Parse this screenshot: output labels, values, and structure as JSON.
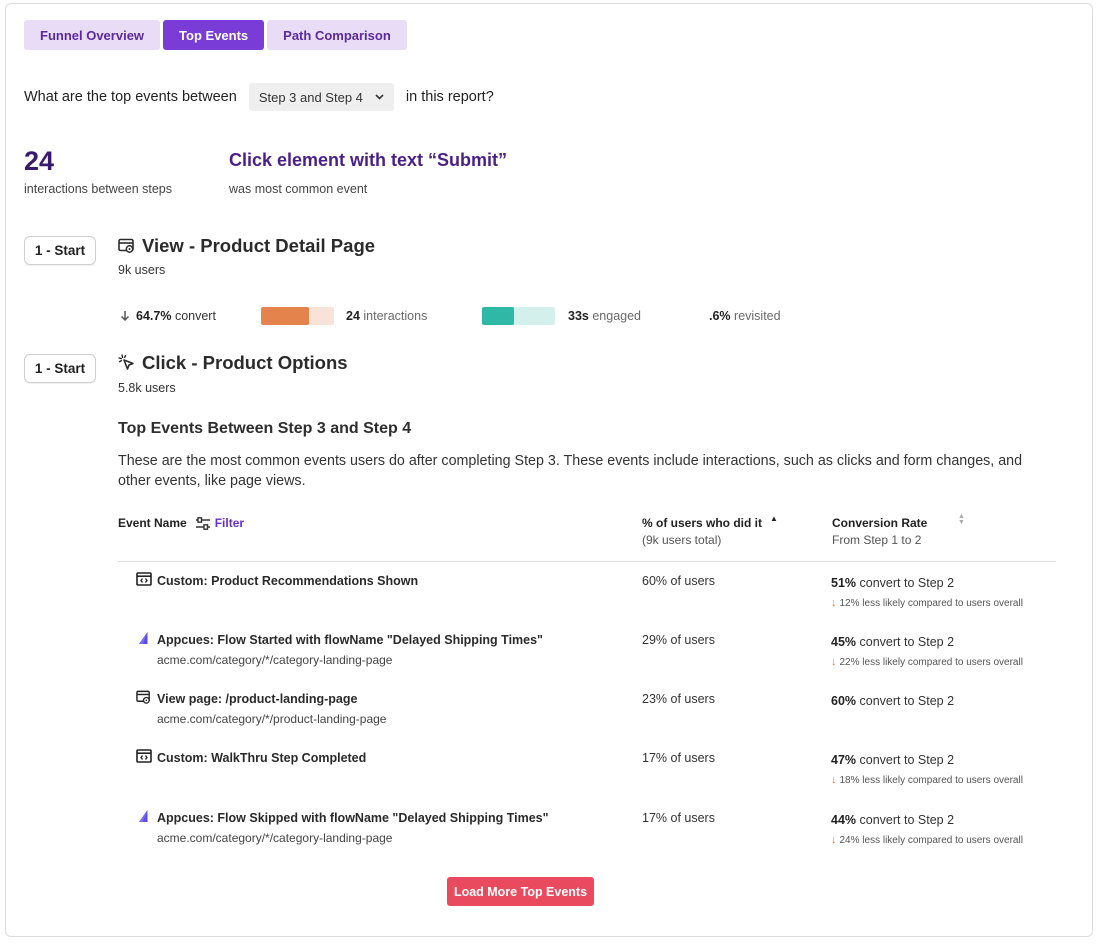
{
  "tabs": [
    {
      "label": "Funnel Overview",
      "active": false
    },
    {
      "label": "Top Events",
      "active": true
    },
    {
      "label": "Path Comparison",
      "active": false
    }
  ],
  "question": {
    "prefix": "What are the top events between",
    "selected": "Step 3 and Step 4",
    "suffix": "in this report?"
  },
  "summary": {
    "count": "24",
    "count_label": "interactions between steps",
    "top_event": "Click element with text “Submit”",
    "top_event_label": "was most common event"
  },
  "steps": [
    {
      "badge": "1 - Start",
      "icon": "page-view-icon",
      "title": "View - Product Detail Page",
      "users": "9k users",
      "metrics": {
        "convert_value": "64.7%",
        "convert_label": "convert",
        "interactions_value": "24",
        "interactions_label": "interactions",
        "interactions_fraction": 0.66,
        "engaged_value": "33s",
        "engaged_label": "engaged",
        "engaged_fraction": 0.44,
        "revisited_value": ".6%",
        "revisited_label": "revisited"
      }
    },
    {
      "badge": "1 - Start",
      "icon": "click-icon",
      "title": "Click - Product Options",
      "users": "5.8k users"
    }
  ],
  "colors": {
    "accent_purple": "#7a3cd6",
    "tab_bg": "#e8dcf6",
    "orange_fill": "#e5834c",
    "orange_track": "#f9e3d8",
    "teal_fill": "#2fb8a6",
    "teal_track": "#d3f0ec",
    "load_button": "#ea4a5e",
    "down_arrow": "#e07b2b"
  },
  "section": {
    "title": "Top Events Between Step 3 and Step 4",
    "description": "These are the most common events users do after completing Step 3. These events include interactions, such as clicks and form changes, and other events, like page views."
  },
  "table": {
    "col_event": "Event Name",
    "filter_label": "Filter",
    "col_pct": "% of users who did it",
    "col_pct_sub": "(9k users total)",
    "col_conv": "Conversion Rate",
    "col_conv_sub": "From Step 1 to 2",
    "rows": [
      {
        "icon": "custom-event-icon",
        "name": "Custom: Product Recommendations Shown",
        "url": "",
        "pct": "60% of users",
        "conv_value": "51%",
        "conv_label": "convert to Step 2",
        "cmp_value": "12%",
        "cmp_label": "less likely compared to users overall"
      },
      {
        "icon": "appcues-icon",
        "name": "Appcues: Flow Started with flowName \"Delayed Shipping Times\"",
        "url": "acme.com/category/*/category-landing-page",
        "pct": "29% of users",
        "conv_value": "45%",
        "conv_label": "convert to Step 2",
        "cmp_value": "22%",
        "cmp_label": "less likely compared to users overall"
      },
      {
        "icon": "page-view-icon",
        "name": "View page: /product-landing-page",
        "url": "acme.com/category/*/product-landing-page",
        "pct": "23% of users",
        "conv_value": "60%",
        "conv_label": "convert to Step 2",
        "cmp_value": "",
        "cmp_label": ""
      },
      {
        "icon": "custom-event-icon",
        "name": "Custom: WalkThru Step Completed",
        "url": "",
        "pct": "17% of users",
        "conv_value": "47%",
        "conv_label": "convert to Step 2",
        "cmp_value": "18%",
        "cmp_label": "less likely compared to users overall"
      },
      {
        "icon": "appcues-icon",
        "name": "Appcues: Flow Skipped with flowName \"Delayed Shipping Times\"",
        "url": "acme.com/category/*/category-landing-page",
        "pct": "17% of users",
        "conv_value": "44%",
        "conv_label": "convert to Step 2",
        "cmp_value": "24%",
        "cmp_label": "less likely compared to users overall"
      }
    ]
  },
  "load_more_label": "Load More Top Events"
}
